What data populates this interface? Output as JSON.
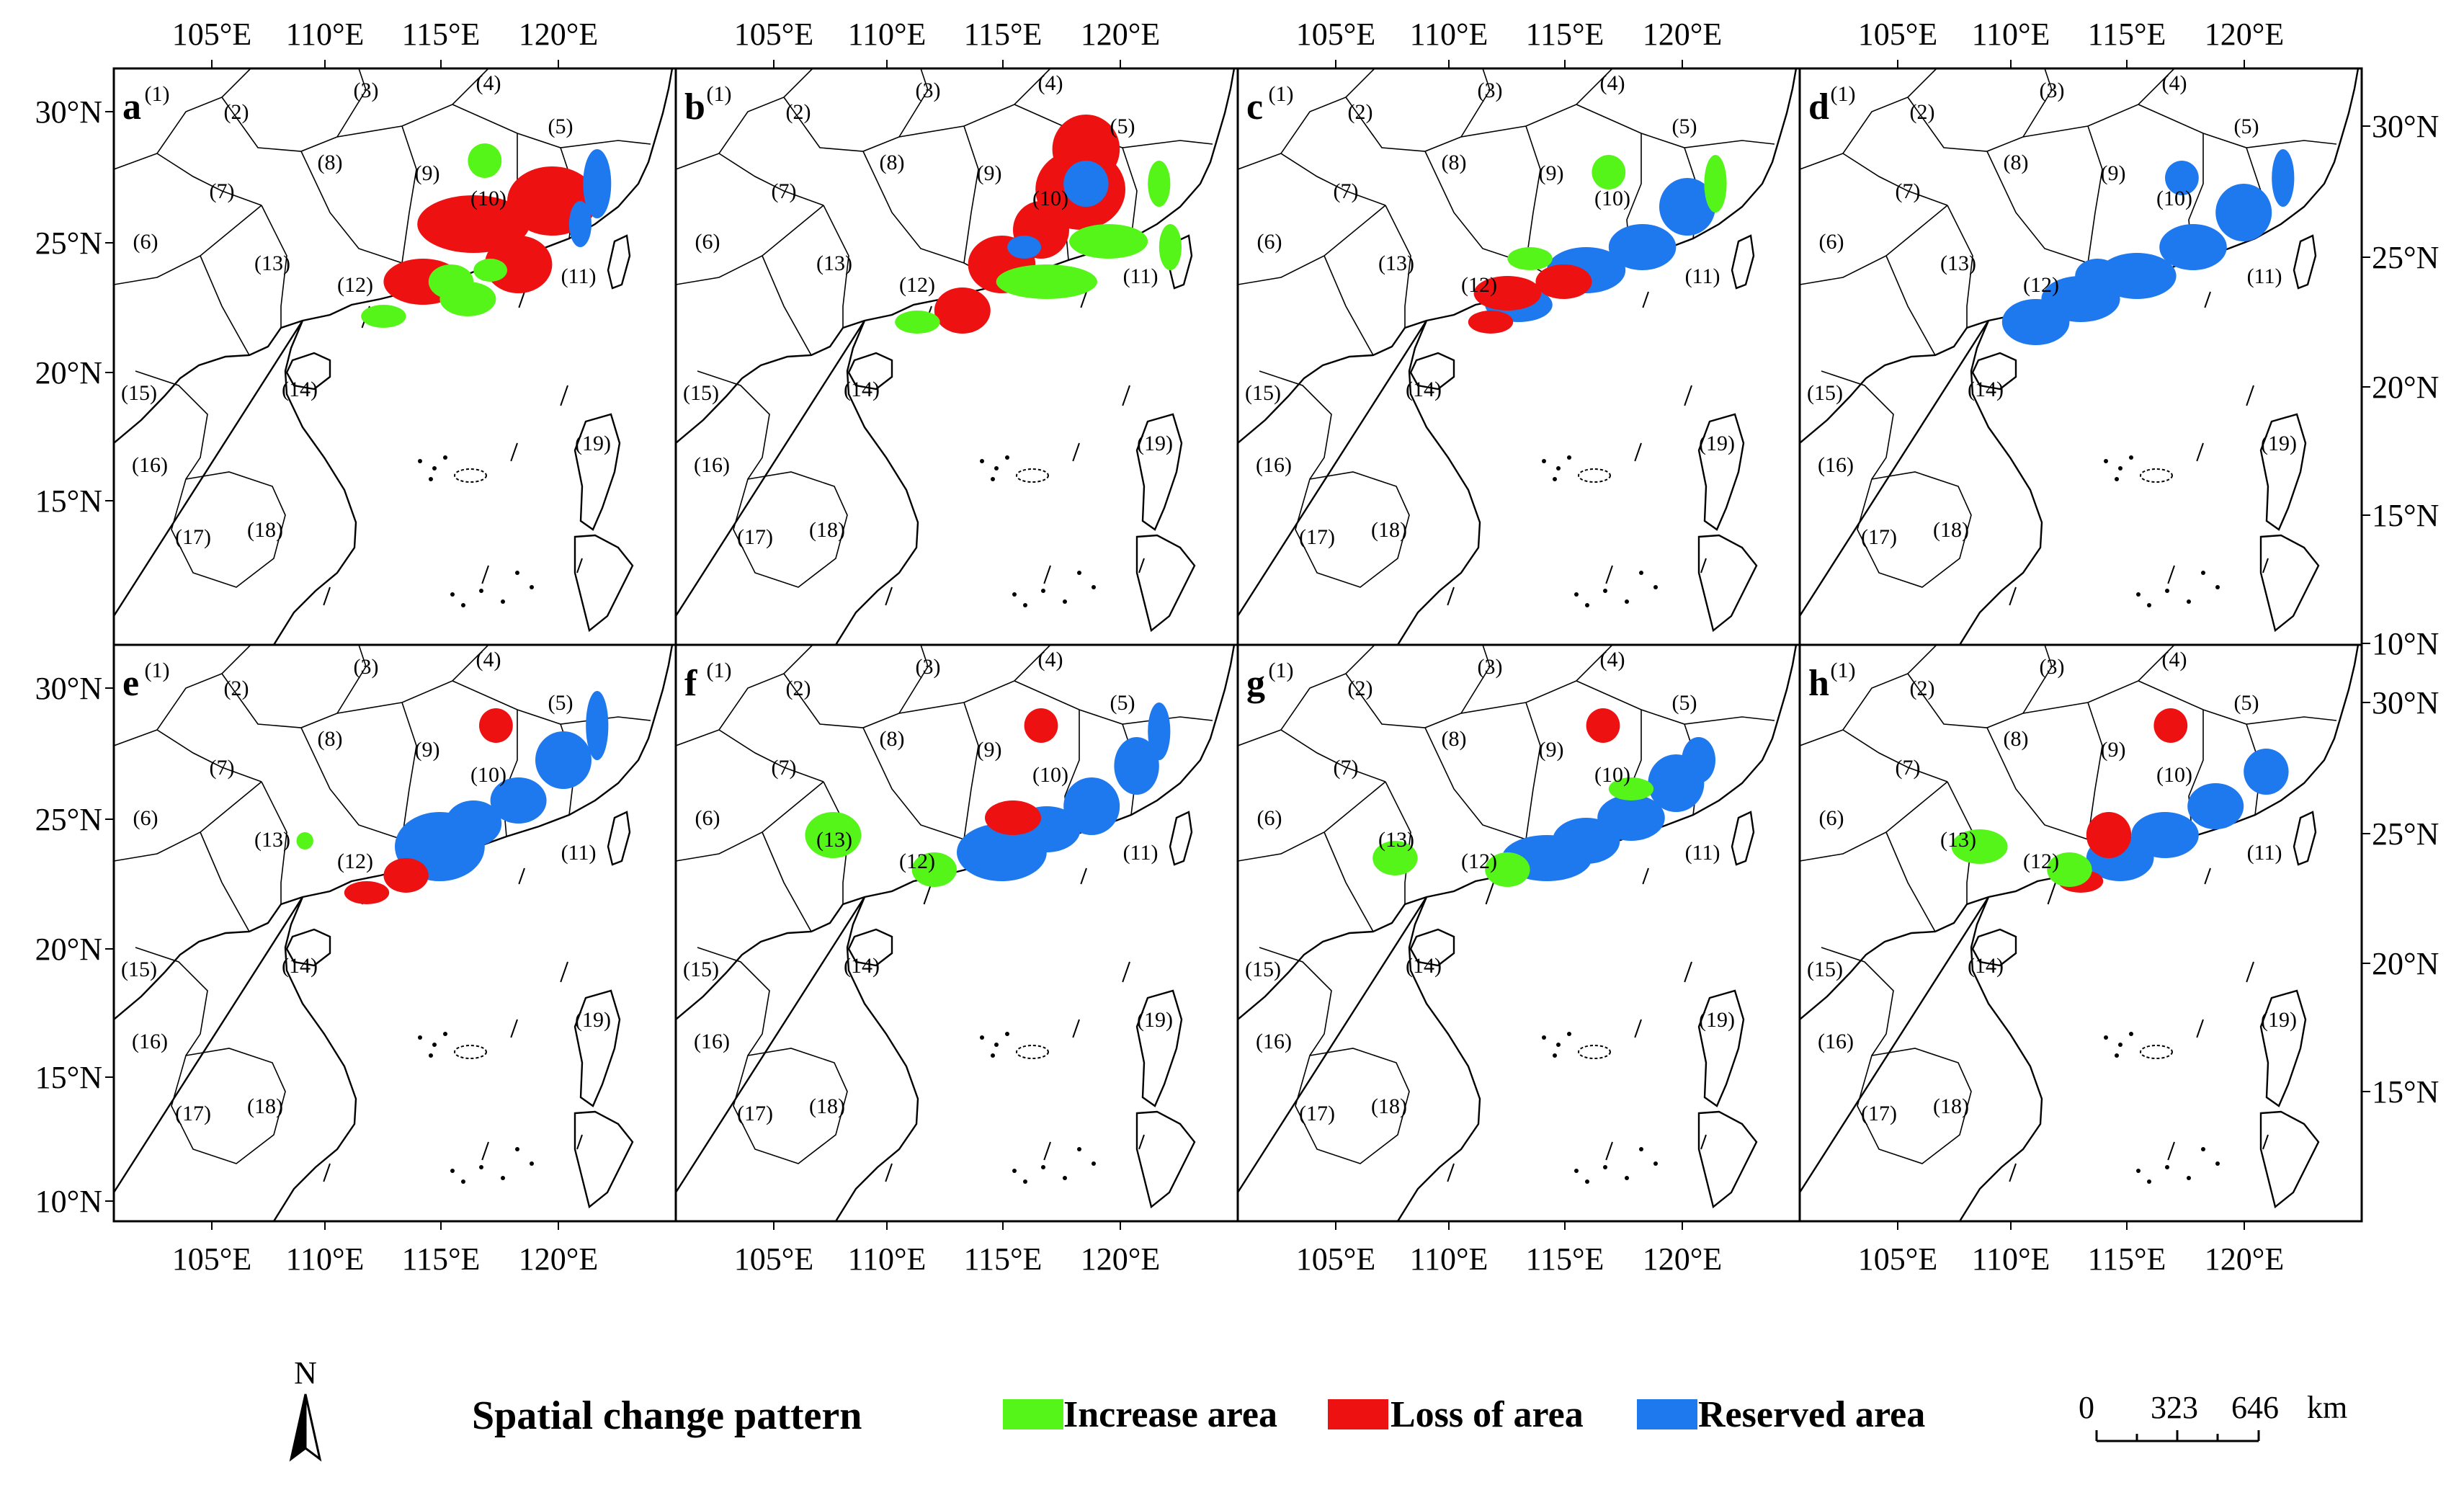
{
  "x_ticks": [
    "105°E",
    "110°E",
    "115°E",
    "120°E"
  ],
  "y_ticks": [
    "30°N",
    "25°N",
    "20°N",
    "15°N",
    "10°N"
  ],
  "panels": [
    {
      "letter": "a",
      "patches": [
        {
          "c": "loss",
          "s": [
            [
              0.64,
              0.27,
              0.1,
              0.05
            ],
            [
              0.78,
              0.23,
              0.08,
              0.06
            ],
            [
              0.55,
              0.37,
              0.07,
              0.04
            ],
            [
              0.72,
              0.34,
              0.06,
              0.05
            ]
          ]
        },
        {
          "c": "increase",
          "s": [
            [
              0.66,
              0.16,
              0.03,
              0.03
            ],
            [
              0.6,
              0.37,
              0.04,
              0.03
            ],
            [
              0.63,
              0.4,
              0.05,
              0.03
            ],
            [
              0.48,
              0.43,
              0.04,
              0.02
            ],
            [
              0.67,
              0.35,
              0.03,
              0.02
            ]
          ]
        },
        {
          "c": "reserved",
          "s": [
            [
              0.86,
              0.2,
              0.025,
              0.06
            ],
            [
              0.83,
              0.27,
              0.02,
              0.04
            ]
          ]
        }
      ]
    },
    {
      "letter": "b",
      "patches": [
        {
          "c": "loss",
          "s": [
            [
              0.73,
              0.14,
              0.06,
              0.06
            ],
            [
              0.72,
              0.21,
              0.08,
              0.07
            ],
            [
              0.58,
              0.34,
              0.06,
              0.05
            ],
            [
              0.51,
              0.42,
              0.05,
              0.04
            ],
            [
              0.65,
              0.28,
              0.05,
              0.05
            ]
          ]
        },
        {
          "c": "increase",
          "s": [
            [
              0.66,
              0.37,
              0.09,
              0.03
            ],
            [
              0.77,
              0.3,
              0.07,
              0.03
            ],
            [
              0.43,
              0.44,
              0.04,
              0.02
            ],
            [
              0.88,
              0.31,
              0.02,
              0.04
            ],
            [
              0.86,
              0.2,
              0.02,
              0.04
            ]
          ]
        },
        {
          "c": "reserved",
          "s": [
            [
              0.73,
              0.2,
              0.04,
              0.04
            ],
            [
              0.62,
              0.31,
              0.03,
              0.02
            ]
          ]
        }
      ]
    },
    {
      "letter": "c",
      "patches": [
        {
          "c": "reserved",
          "s": [
            [
              0.62,
              0.35,
              0.07,
              0.04
            ],
            [
              0.72,
              0.31,
              0.06,
              0.04
            ],
            [
              0.8,
              0.24,
              0.05,
              0.05
            ],
            [
              0.5,
              0.41,
              0.06,
              0.03
            ]
          ]
        },
        {
          "c": "loss",
          "s": [
            [
              0.48,
              0.39,
              0.06,
              0.03
            ],
            [
              0.58,
              0.37,
              0.05,
              0.03
            ],
            [
              0.45,
              0.44,
              0.04,
              0.02
            ]
          ]
        },
        {
          "c": "increase",
          "s": [
            [
              0.66,
              0.18,
              0.03,
              0.03
            ],
            [
              0.85,
              0.2,
              0.02,
              0.05
            ],
            [
              0.52,
              0.33,
              0.04,
              0.02
            ]
          ]
        }
      ]
    },
    {
      "letter": "d",
      "patches": [
        {
          "c": "reserved",
          "s": [
            [
              0.68,
              0.19,
              0.03,
              0.03
            ],
            [
              0.42,
              0.44,
              0.06,
              0.04
            ],
            [
              0.5,
              0.4,
              0.07,
              0.04
            ],
            [
              0.6,
              0.36,
              0.07,
              0.04
            ],
            [
              0.7,
              0.31,
              0.06,
              0.04
            ],
            [
              0.79,
              0.25,
              0.05,
              0.05
            ],
            [
              0.86,
              0.19,
              0.02,
              0.05
            ],
            [
              0.53,
              0.36,
              0.04,
              0.03
            ]
          ]
        }
      ]
    },
    {
      "letter": "e",
      "patches": [
        {
          "c": "reserved",
          "s": [
            [
              0.58,
              0.35,
              0.08,
              0.06
            ],
            [
              0.64,
              0.31,
              0.05,
              0.04
            ],
            [
              0.72,
              0.27,
              0.05,
              0.04
            ],
            [
              0.8,
              0.2,
              0.05,
              0.05
            ],
            [
              0.86,
              0.14,
              0.02,
              0.06
            ]
          ]
        },
        {
          "c": "loss",
          "s": [
            [
              0.68,
              0.14,
              0.03,
              0.03
            ],
            [
              0.52,
              0.4,
              0.04,
              0.03
            ],
            [
              0.45,
              0.43,
              0.04,
              0.02
            ]
          ]
        },
        {
          "c": "increase",
          "s": [
            [
              0.34,
              0.34,
              0.015,
              0.015
            ]
          ]
        }
      ]
    },
    {
      "letter": "f",
      "patches": [
        {
          "c": "reserved",
          "s": [
            [
              0.58,
              0.36,
              0.08,
              0.05
            ],
            [
              0.66,
              0.32,
              0.06,
              0.04
            ],
            [
              0.74,
              0.28,
              0.05,
              0.05
            ],
            [
              0.82,
              0.21,
              0.04,
              0.05
            ],
            [
              0.86,
              0.15,
              0.02,
              0.05
            ]
          ]
        },
        {
          "c": "loss",
          "s": [
            [
              0.65,
              0.14,
              0.03,
              0.03
            ],
            [
              0.6,
              0.3,
              0.05,
              0.03
            ]
          ]
        },
        {
          "c": "increase",
          "s": [
            [
              0.28,
              0.33,
              0.05,
              0.04
            ],
            [
              0.46,
              0.39,
              0.04,
              0.03
            ]
          ]
        }
      ]
    },
    {
      "letter": "g",
      "patches": [
        {
          "c": "reserved",
          "s": [
            [
              0.55,
              0.37,
              0.08,
              0.04
            ],
            [
              0.62,
              0.34,
              0.06,
              0.04
            ],
            [
              0.7,
              0.3,
              0.06,
              0.04
            ],
            [
              0.78,
              0.24,
              0.05,
              0.05
            ],
            [
              0.82,
              0.2,
              0.03,
              0.04
            ]
          ]
        },
        {
          "c": "loss",
          "s": [
            [
              0.65,
              0.14,
              0.03,
              0.03
            ]
          ]
        },
        {
          "c": "increase",
          "s": [
            [
              0.28,
              0.37,
              0.04,
              0.03
            ],
            [
              0.48,
              0.39,
              0.04,
              0.03
            ],
            [
              0.7,
              0.25,
              0.04,
              0.02
            ]
          ]
        }
      ]
    },
    {
      "letter": "h",
      "patches": [
        {
          "c": "reserved",
          "s": [
            [
              0.57,
              0.37,
              0.06,
              0.04
            ],
            [
              0.65,
              0.33,
              0.06,
              0.04
            ],
            [
              0.74,
              0.28,
              0.05,
              0.04
            ],
            [
              0.83,
              0.22,
              0.04,
              0.04
            ]
          ]
        },
        {
          "c": "loss",
          "s": [
            [
              0.66,
              0.14,
              0.03,
              0.03
            ],
            [
              0.55,
              0.33,
              0.04,
              0.04
            ],
            [
              0.5,
              0.41,
              0.04,
              0.02
            ]
          ]
        },
        {
          "c": "increase",
          "s": [
            [
              0.32,
              0.35,
              0.05,
              0.03
            ],
            [
              0.48,
              0.39,
              0.04,
              0.03
            ]
          ]
        }
      ]
    }
  ],
  "regions": [
    "(1)",
    "(2)",
    "(3)",
    "(4)",
    "(5)",
    "(6)",
    "(7)",
    "(8)",
    "(9)",
    "(10)",
    "(11)",
    "(12)",
    "(13)",
    "(14)",
    "(15)",
    "(16)",
    "(17)",
    "(18)",
    "(19)"
  ],
  "north_label": "N",
  "legend": {
    "title": "Spatial change pattern",
    "items": [
      {
        "label": "Increase area",
        "color": "#56f51a"
      },
      {
        "label": "Loss of area",
        "color": "#ee1111"
      },
      {
        "label": "Reserved area",
        "color": "#1e78ee"
      }
    ]
  },
  "scale_bar": {
    "labels": [
      "0",
      "323",
      "646"
    ],
    "unit": "km"
  }
}
